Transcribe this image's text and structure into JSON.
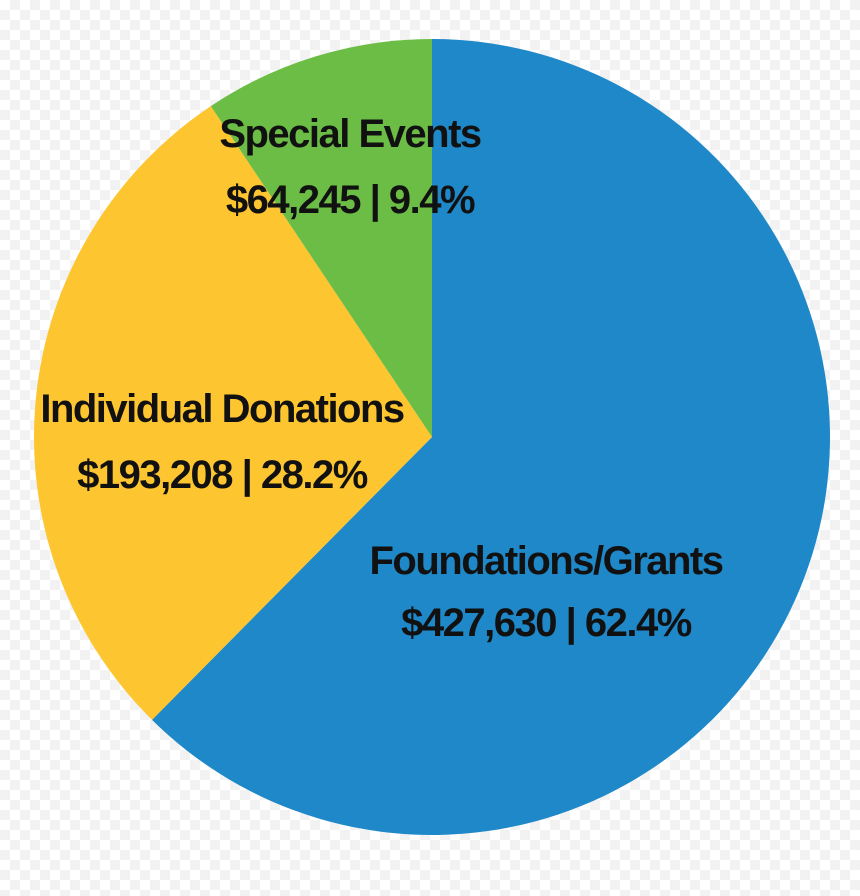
{
  "chart_data": {
    "type": "pie",
    "start": "12 o'clock",
    "direction": "clockwise",
    "slices": [
      {
        "label": "Foundations/Grants",
        "value": 427630,
        "percent": 62.4,
        "value_label": "$427,630 | 62.4%",
        "color": "#1f88c9"
      },
      {
        "label": "Individual Donations",
        "value": 193208,
        "percent": 28.2,
        "value_label": "$193,208 | 28.2%",
        "color": "#fdc52f"
      },
      {
        "label": "Special Events",
        "value": 64245,
        "percent": 9.4,
        "value_label": "$64,245 | 9.4%",
        "color": "#6bbd45"
      }
    ]
  }
}
